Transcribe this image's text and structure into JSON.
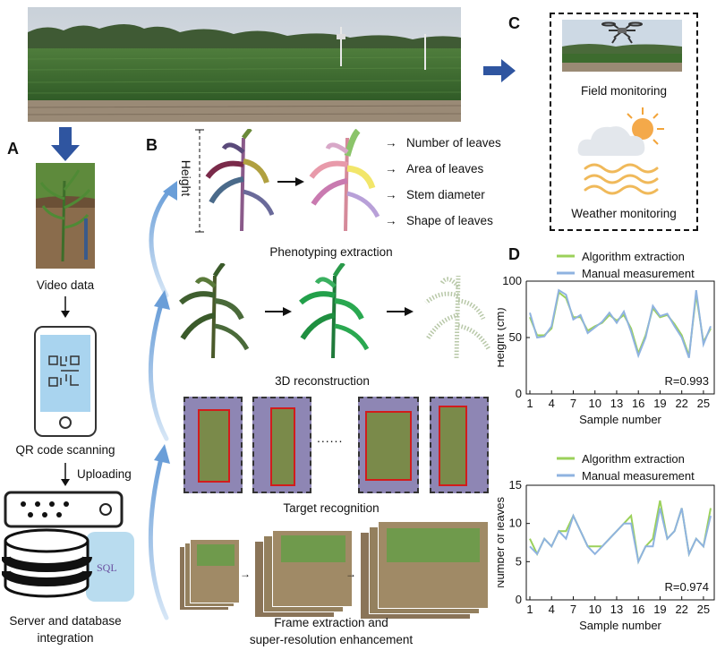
{
  "panels": {
    "a": "A",
    "b": "B",
    "c": "C",
    "d": "D"
  },
  "labels": {
    "video_data": "Video data",
    "qr_scanning": "QR code scanning",
    "uploading": "Uploading",
    "server_db_line1": "Server and database",
    "server_db_line2": "integration",
    "sql": "SQL",
    "height": "Height",
    "pheno_outputs": [
      "Number of leaves",
      "Area of leaves",
      "Stem diameter",
      "Shape of leaves"
    ],
    "phenotyping_extraction": "Phenotyping extraction",
    "reconstruction_3d": "3D reconstruction",
    "target_recognition": "Target recognition",
    "ellipsis": "......",
    "frame_line1": "Frame extraction and",
    "frame_line2": "super-resolution enhancement",
    "field_monitoring": "Field monitoring",
    "weather_monitoring": "Weather monitoring"
  },
  "colors": {
    "arrow_blue": "#2f55a0",
    "algorithm": "#9bd15a",
    "manual": "#8fb3e0",
    "box_red": "#d21c1c",
    "sql_blue": "#b9dcef"
  },
  "chart_data": [
    {
      "type": "line",
      "xlabel": "Sample number",
      "ylabel": "Height (cm)",
      "ylim": [
        0,
        100
      ],
      "yticks": [
        0,
        50,
        100
      ],
      "xticks": [
        1,
        4,
        7,
        10,
        13,
        16,
        19,
        22,
        25
      ],
      "annotation": "R=0.993",
      "legend": "top-right",
      "x": [
        1,
        2,
        3,
        4,
        5,
        6,
        7,
        8,
        9,
        10,
        11,
        12,
        13,
        14,
        15,
        16,
        17,
        18,
        19,
        20,
        21,
        22,
        23,
        24,
        25,
        26
      ],
      "series": [
        {
          "name": "Algorithm extraction",
          "values": [
            68,
            52,
            52,
            58,
            90,
            85,
            68,
            68,
            56,
            60,
            63,
            70,
            65,
            70,
            58,
            36,
            52,
            76,
            68,
            70,
            62,
            52,
            34,
            88,
            46,
            58
          ]
        },
        {
          "name": "Manual measurement",
          "values": [
            72,
            50,
            51,
            60,
            92,
            88,
            66,
            70,
            54,
            59,
            64,
            72,
            63,
            73,
            55,
            34,
            50,
            78,
            69,
            71,
            60,
            50,
            32,
            92,
            44,
            60
          ]
        }
      ]
    },
    {
      "type": "line",
      "xlabel": "Sample number",
      "ylabel": "Number of leaves",
      "ylim": [
        0,
        15
      ],
      "yticks": [
        0,
        5,
        10,
        15
      ],
      "xticks": [
        1,
        4,
        7,
        10,
        13,
        16,
        19,
        22,
        25
      ],
      "annotation": "R=0.974",
      "legend": "top-right",
      "x": [
        1,
        2,
        3,
        4,
        5,
        6,
        7,
        8,
        9,
        10,
        11,
        12,
        13,
        14,
        15,
        16,
        17,
        18,
        19,
        20,
        21,
        22,
        23,
        24,
        25,
        26
      ],
      "series": [
        {
          "name": "Algorithm extraction",
          "values": [
            8,
            6,
            8,
            7,
            9,
            9,
            11,
            9,
            7,
            7,
            7,
            8,
            9,
            10,
            11,
            5,
            7,
            8,
            13,
            8,
            9,
            12,
            6,
            8,
            7,
            12
          ]
        },
        {
          "name": "Manual measurement",
          "values": [
            7,
            6,
            8,
            7,
            9,
            8,
            11,
            9,
            7,
            6,
            7,
            8,
            9,
            10,
            10,
            5,
            7,
            7,
            12,
            8,
            9,
            12,
            6,
            8,
            7,
            11
          ]
        }
      ]
    }
  ]
}
